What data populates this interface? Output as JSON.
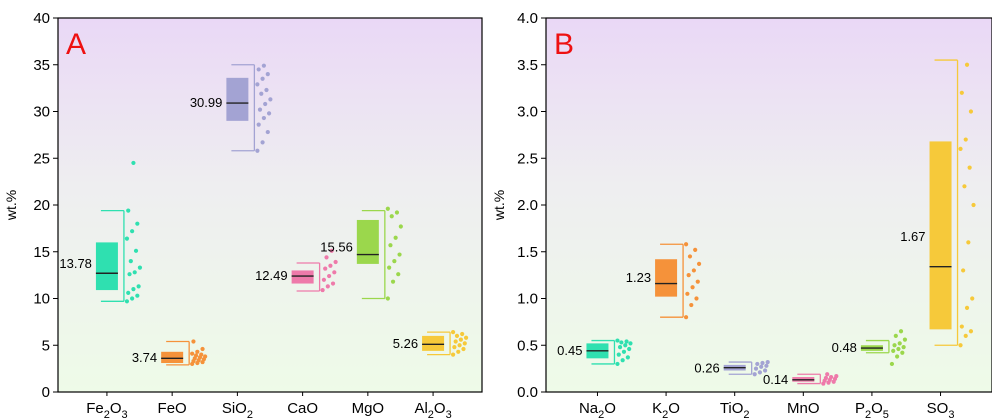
{
  "chart_data": [
    {
      "type": "box",
      "panel_label": "A",
      "ylabel": "wt.%",
      "ylim": [
        0,
        40
      ],
      "yticks": [
        "0",
        "5",
        "10",
        "15",
        "20",
        "25",
        "30",
        "35",
        "40"
      ],
      "categories": [
        {
          "base": "Fe",
          "sub1": "2",
          "mid": "O",
          "sub2": "3"
        },
        {
          "base": "FeO",
          "sub1": "",
          "mid": "",
          "sub2": ""
        },
        {
          "base": "SiO",
          "sub1": "2",
          "mid": "",
          "sub2": ""
        },
        {
          "base": "CaO",
          "sub1": "",
          "mid": "",
          "sub2": ""
        },
        {
          "base": "MgO",
          "sub1": "",
          "mid": "",
          "sub2": ""
        },
        {
          "base": "Al",
          "sub1": "2",
          "mid": "O",
          "sub2": "3"
        }
      ],
      "colors": [
        "#2fe0b0",
        "#f5923a",
        "#a3a3d3",
        "#ee7aaa",
        "#9bd74c",
        "#f6c93a"
      ],
      "boxes": [
        {
          "mean_label": "13.78",
          "mean": 13.78,
          "min": 9.7,
          "q1": 10.9,
          "median": 12.7,
          "q3": 16.0,
          "max": 19.4
        },
        {
          "mean_label": "3.74",
          "mean": 3.74,
          "min": 2.9,
          "q1": 3.1,
          "median": 3.6,
          "q3": 4.3,
          "max": 5.4
        },
        {
          "mean_label": "30.99",
          "mean": 30.99,
          "min": 25.8,
          "q1": 29.0,
          "median": 30.9,
          "q3": 33.6,
          "max": 35.0
        },
        {
          "mean_label": "12.49",
          "mean": 12.49,
          "min": 10.8,
          "q1": 11.6,
          "median": 12.4,
          "q3": 13.0,
          "max": 13.8
        },
        {
          "mean_label": "15.56",
          "mean": 15.56,
          "min": 10.0,
          "q1": 13.7,
          "median": 14.7,
          "q3": 18.4,
          "max": 19.4
        },
        {
          "mean_label": "5.26",
          "mean": 5.26,
          "min": 4.0,
          "q1": 4.4,
          "median": 5.1,
          "q3": 6.0,
          "max": 6.4
        }
      ],
      "points": [
        [
          9.7,
          10.0,
          10.3,
          10.6,
          11.0,
          11.3,
          12.6,
          12.8,
          13.3,
          14.0,
          15.1,
          16.4,
          17.2,
          18.0,
          19.4,
          24.5
        ],
        [
          3.0,
          3.1,
          3.2,
          3.3,
          3.4,
          3.5,
          3.6,
          3.7,
          3.8,
          3.9,
          4.0,
          4.1,
          4.3,
          4.6,
          5.4
        ],
        [
          25.8,
          26.7,
          27.8,
          28.6,
          29.3,
          29.8,
          30.2,
          30.8,
          31.3,
          31.9,
          32.3,
          32.9,
          33.5,
          34.0,
          34.5,
          34.9
        ],
        [
          10.9,
          11.3,
          11.6,
          12.0,
          12.4,
          12.8,
          13.2,
          13.5,
          13.9,
          14.4,
          15.1
        ],
        [
          10.0,
          11.8,
          12.6,
          13.3,
          14.0,
          14.7,
          15.7,
          16.5,
          17.7,
          18.8,
          19.2,
          19.6
        ],
        [
          4.0,
          4.3,
          4.6,
          4.8,
          5.0,
          5.2,
          5.4,
          5.6,
          5.8,
          6.0,
          6.2,
          6.4
        ]
      ]
    },
    {
      "type": "box",
      "panel_label": "B",
      "ylabel": "wt.%",
      "ylim": [
        0,
        4
      ],
      "yticks": [
        "0.0",
        "0.5",
        "1.0",
        "1.5",
        "2.0",
        "2.5",
        "3.0",
        "3.5",
        "4.0"
      ],
      "categories": [
        {
          "base": "Na",
          "sub1": "2",
          "mid": "O",
          "sub2": ""
        },
        {
          "base": "K",
          "sub1": "2",
          "mid": "O",
          "sub2": ""
        },
        {
          "base": "TiO",
          "sub1": "2",
          "mid": "",
          "sub2": ""
        },
        {
          "base": "MnO",
          "sub1": "",
          "mid": "",
          "sub2": ""
        },
        {
          "base": "P",
          "sub1": "2",
          "mid": "O",
          "sub2": "5"
        },
        {
          "base": "SO",
          "sub1": "3",
          "mid": "",
          "sub2": ""
        }
      ],
      "colors": [
        "#2fe0b0",
        "#f5923a",
        "#a3a3d3",
        "#ee7aaa",
        "#9bd74c",
        "#f6c93a"
      ],
      "boxes": [
        {
          "mean_label": "0.45",
          "mean": 0.45,
          "min": 0.3,
          "q1": 0.36,
          "median": 0.44,
          "q3": 0.52,
          "max": 0.55
        },
        {
          "mean_label": "1.23",
          "mean": 1.23,
          "min": 0.8,
          "q1": 1.02,
          "median": 1.16,
          "q3": 1.42,
          "max": 1.58
        },
        {
          "mean_label": "0.26",
          "mean": 0.26,
          "min": 0.19,
          "q1": 0.23,
          "median": 0.26,
          "q3": 0.29,
          "max": 0.32
        },
        {
          "mean_label": "0.14",
          "mean": 0.14,
          "min": 0.09,
          "q1": 0.11,
          "median": 0.13,
          "q3": 0.16,
          "max": 0.19
        },
        {
          "mean_label": "0.48",
          "mean": 0.48,
          "min": 0.42,
          "q1": 0.44,
          "median": 0.47,
          "q3": 0.5,
          "max": 0.55
        },
        {
          "mean_label": "1.67",
          "mean": 1.67,
          "min": 0.5,
          "q1": 0.67,
          "median": 1.34,
          "q3": 2.68,
          "max": 3.55
        }
      ],
      "points": [
        [
          0.3,
          0.34,
          0.37,
          0.4,
          0.43,
          0.46,
          0.48,
          0.5,
          0.52,
          0.53,
          0.54,
          0.55
        ],
        [
          0.8,
          0.93,
          1.0,
          1.05,
          1.12,
          1.18,
          1.25,
          1.3,
          1.37,
          1.45,
          1.52,
          1.58
        ],
        [
          0.19,
          0.21,
          0.23,
          0.25,
          0.27,
          0.28,
          0.3,
          0.31,
          0.32
        ],
        [
          0.09,
          0.1,
          0.11,
          0.12,
          0.13,
          0.14,
          0.15,
          0.16,
          0.17,
          0.19
        ],
        [
          0.3,
          0.38,
          0.42,
          0.44,
          0.46,
          0.48,
          0.5,
          0.52,
          0.56,
          0.6,
          0.65
        ],
        [
          0.5,
          0.6,
          0.65,
          0.7,
          0.9,
          1.0,
          1.3,
          1.6,
          2.0,
          2.2,
          2.4,
          2.6,
          2.7,
          3.0,
          3.2,
          3.5
        ]
      ]
    }
  ]
}
